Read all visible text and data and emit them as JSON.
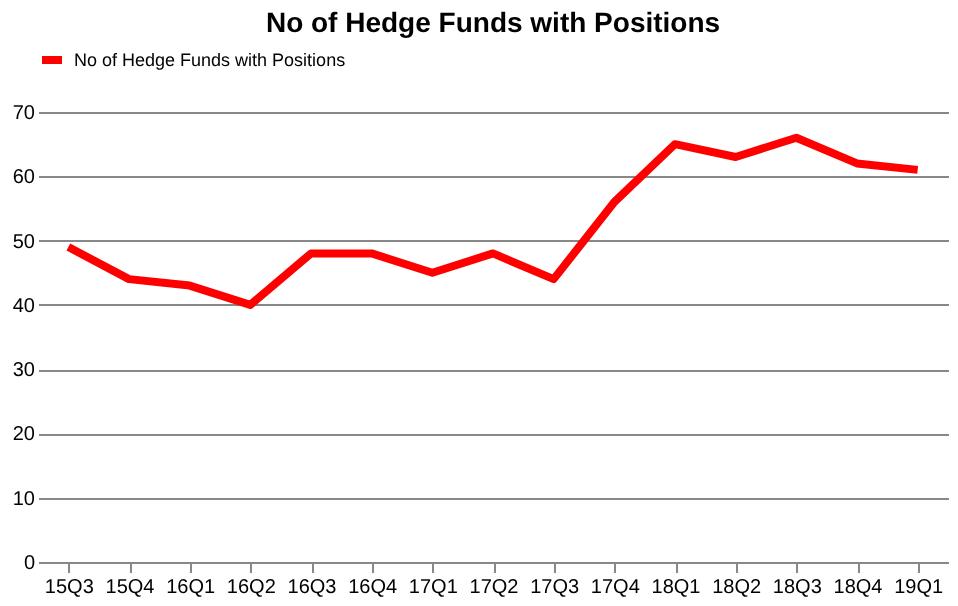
{
  "chart_data": {
    "type": "line",
    "title": "No of Hedge Funds with Positions",
    "categories": [
      "15Q3",
      "15Q4",
      "16Q1",
      "16Q2",
      "16Q3",
      "16Q4",
      "17Q1",
      "17Q2",
      "17Q3",
      "17Q4",
      "18Q1",
      "18Q2",
      "18Q3",
      "18Q4",
      "19Q1"
    ],
    "series": [
      {
        "name": "No of Hedge Funds with Positions",
        "color": "#ff0000",
        "values": [
          49,
          44,
          43,
          40,
          48,
          48,
          45,
          48,
          44,
          56,
          65,
          63,
          66,
          62,
          61
        ]
      }
    ],
    "ylim": [
      0,
      70
    ],
    "yticks": [
      0,
      10,
      20,
      30,
      40,
      50,
      60,
      70
    ],
    "grid": "y",
    "legend": "top",
    "marker": "none",
    "line_style": "solid"
  }
}
